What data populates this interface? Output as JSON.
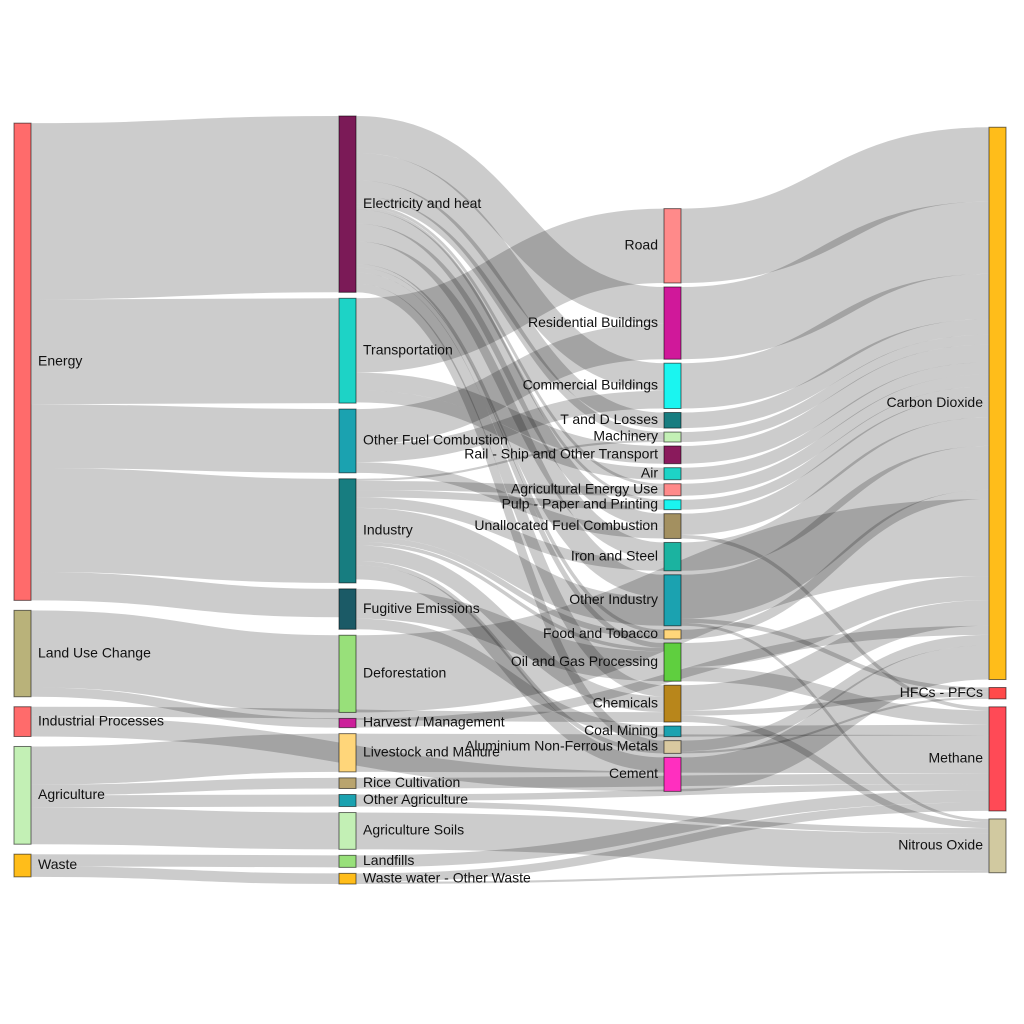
{
  "chart_data": {
    "type": "sankey",
    "nodes": [
      {
        "id": "energy",
        "label": "Energy",
        "color": "#ff6b6b",
        "col": 0
      },
      {
        "id": "luc",
        "label": "Land Use Change",
        "color": "#b9b27a",
        "col": 0
      },
      {
        "id": "ip",
        "label": "Industrial Processes",
        "color": "#ff6b6b",
        "col": 0
      },
      {
        "id": "ag",
        "label": "Agriculture",
        "color": "#c3f0b5",
        "col": 0
      },
      {
        "id": "waste",
        "label": "Waste",
        "color": "#ffbd1a",
        "col": 0
      },
      {
        "id": "elec",
        "label": "Electricity and heat",
        "color": "#7b1a57",
        "col": 1
      },
      {
        "id": "trans",
        "label": "Transportation",
        "color": "#1dd3c6",
        "col": 1
      },
      {
        "id": "ofc",
        "label": "Other Fuel Combustion",
        "color": "#1ba2b0",
        "col": 1
      },
      {
        "id": "ind",
        "label": "Industry",
        "color": "#177d80",
        "col": 1
      },
      {
        "id": "fug",
        "label": "Fugitive Emissions",
        "color": "#1b5a66",
        "col": 1
      },
      {
        "id": "def",
        "label": "Deforestation",
        "color": "#98e07a",
        "col": 1
      },
      {
        "id": "harv",
        "label": "Harvest / Management",
        "color": "#cc1f9a",
        "col": 1
      },
      {
        "id": "live",
        "label": "Livestock and Manure",
        "color": "#ffd67a",
        "col": 1
      },
      {
        "id": "rice",
        "label": "Rice Cultivation",
        "color": "#b9a46e",
        "col": 1
      },
      {
        "id": "oag",
        "label": "Other Agriculture",
        "color": "#1ba2b0",
        "col": 1
      },
      {
        "id": "soil",
        "label": "Agriculture Soils",
        "color": "#c3f0b5",
        "col": 1
      },
      {
        "id": "landf",
        "label": "Landfills",
        "color": "#98e07a",
        "col": 1
      },
      {
        "id": "ww",
        "label": "Waste water - Other Waste",
        "color": "#ffbd1a",
        "col": 1
      },
      {
        "id": "road",
        "label": "Road",
        "color": "#ff8a8a",
        "col": 2
      },
      {
        "id": "res",
        "label": "Residential Buildings",
        "color": "#d0189a",
        "col": 2
      },
      {
        "id": "com",
        "label": "Commercial Buildings",
        "color": "#1af5f0",
        "col": 2
      },
      {
        "id": "tdl",
        "label": "T and D Losses",
        "color": "#177d80",
        "col": 2
      },
      {
        "id": "mach",
        "label": "Machinery",
        "color": "#c3f0b5",
        "col": 2
      },
      {
        "id": "rail",
        "label": "Rail - Ship and Other Transport",
        "color": "#8a1a5c",
        "col": 2
      },
      {
        "id": "air",
        "label": "Air",
        "color": "#1dd3c6",
        "col": 2
      },
      {
        "id": "agen",
        "label": "Agricultural Energy Use",
        "color": "#ff8a8a",
        "col": 2
      },
      {
        "id": "pulp",
        "label": "Pulp - Paper and Printing",
        "color": "#1af5f0",
        "col": 2
      },
      {
        "id": "unal",
        "label": "Unallocated Fuel Combustion",
        "color": "#a39060",
        "col": 2
      },
      {
        "id": "iron",
        "label": "Iron and Steel",
        "color": "#1bb3a0",
        "col": 2
      },
      {
        "id": "oind",
        "label": "Other Industry",
        "color": "#1ba2b0",
        "col": 2
      },
      {
        "id": "food",
        "label": "Food and Tobacco",
        "color": "#ffd67a",
        "col": 2
      },
      {
        "id": "oil",
        "label": "Oil and Gas Processing",
        "color": "#5fcf3f",
        "col": 2
      },
      {
        "id": "chem",
        "label": "Chemicals",
        "color": "#b8861b",
        "col": 2
      },
      {
        "id": "coal",
        "label": "Coal Mining",
        "color": "#1ba2b0",
        "col": 2
      },
      {
        "id": "alu",
        "label": "Aluminium Non-Ferrous Metals",
        "color": "#d9c9a0",
        "col": 2
      },
      {
        "id": "cem",
        "label": "Cement",
        "color": "#ff2fbf",
        "col": 2
      },
      {
        "id": "co2",
        "label": "Carbon Dioxide",
        "color": "#ffbd1a",
        "col": 3
      },
      {
        "id": "hfc",
        "label": "HFCs - PFCs",
        "color": "#ff4a4a",
        "col": 3
      },
      {
        "id": "ch4",
        "label": "Methane",
        "color": "#ff4a56",
        "col": 3
      },
      {
        "id": "n2o",
        "label": "Nitrous Oxide",
        "color": "#d1c9a0",
        "col": 3
      }
    ],
    "links": [
      {
        "source": "energy",
        "target": "elec",
        "value": 24.9
      },
      {
        "source": "energy",
        "target": "trans",
        "value": 14.8
      },
      {
        "source": "energy",
        "target": "ofc",
        "value": 9.0
      },
      {
        "source": "energy",
        "target": "ind",
        "value": 14.7
      },
      {
        "source": "energy",
        "target": "fug",
        "value": 4.0
      },
      {
        "source": "luc",
        "target": "def",
        "value": 10.9
      },
      {
        "source": "luc",
        "target": "harv",
        "value": 1.3
      },
      {
        "source": "ip",
        "target": "cem",
        "value": 2.8
      },
      {
        "source": "ip",
        "target": "chem",
        "value": 1.4
      },
      {
        "source": "ag",
        "target": "live",
        "value": 5.4
      },
      {
        "source": "ag",
        "target": "rice",
        "value": 1.5
      },
      {
        "source": "ag",
        "target": "oag",
        "value": 1.7
      },
      {
        "source": "ag",
        "target": "soil",
        "value": 5.2
      },
      {
        "source": "waste",
        "target": "landf",
        "value": 1.7
      },
      {
        "source": "waste",
        "target": "ww",
        "value": 1.5
      },
      {
        "source": "elec",
        "target": "res",
        "value": 5.2
      },
      {
        "source": "elec",
        "target": "com",
        "value": 3.9
      },
      {
        "source": "elec",
        "target": "tdl",
        "value": 2.2
      },
      {
        "source": "elec",
        "target": "unal",
        "value": 2.0
      },
      {
        "source": "elec",
        "target": "iron",
        "value": 2.5
      },
      {
        "source": "elec",
        "target": "oind",
        "value": 3.2
      },
      {
        "source": "elec",
        "target": "chem",
        "value": 1.6
      },
      {
        "source": "elec",
        "target": "alu",
        "value": 1.2
      },
      {
        "source": "elec",
        "target": "mach",
        "value": 1.1
      },
      {
        "source": "elec",
        "target": "pulp",
        "value": 0.4
      },
      {
        "source": "elec",
        "target": "agen",
        "value": 0.4
      },
      {
        "source": "elec",
        "target": "food",
        "value": 0.5
      },
      {
        "source": "elec",
        "target": "oil",
        "value": 0.7
      },
      {
        "source": "trans",
        "target": "road",
        "value": 10.5
      },
      {
        "source": "trans",
        "target": "rail",
        "value": 2.5
      },
      {
        "source": "trans",
        "target": "air",
        "value": 1.7
      },
      {
        "source": "ofc",
        "target": "res",
        "value": 5.0
      },
      {
        "source": "ofc",
        "target": "com",
        "value": 2.5
      },
      {
        "source": "ofc",
        "target": "unal",
        "value": 1.5
      },
      {
        "source": "ind",
        "target": "iron",
        "value": 1.5
      },
      {
        "source": "ind",
        "target": "oind",
        "value": 4.0
      },
      {
        "source": "ind",
        "target": "chem",
        "value": 2.2
      },
      {
        "source": "ind",
        "target": "cem",
        "value": 2.0
      },
      {
        "source": "ind",
        "target": "alu",
        "value": 0.6
      },
      {
        "source": "ind",
        "target": "pulp",
        "value": 1.0
      },
      {
        "source": "ind",
        "target": "food",
        "value": 0.8
      },
      {
        "source": "ind",
        "target": "mach",
        "value": 0.3
      },
      {
        "source": "ind",
        "target": "agen",
        "value": 1.3
      },
      {
        "source": "ind",
        "target": "oil",
        "value": 0.5
      },
      {
        "source": "fug",
        "target": "oil",
        "value": 4.2
      },
      {
        "source": "fug",
        "target": "coal",
        "value": 1.5
      },
      {
        "source": "road",
        "target": "co2",
        "value": 10.5
      },
      {
        "source": "res",
        "target": "co2",
        "value": 10.2
      },
      {
        "source": "com",
        "target": "co2",
        "value": 6.4
      },
      {
        "source": "tdl",
        "target": "co2",
        "value": 2.2
      },
      {
        "source": "mach",
        "target": "co2",
        "value": 1.4
      },
      {
        "source": "rail",
        "target": "co2",
        "value": 2.5
      },
      {
        "source": "air",
        "target": "co2",
        "value": 1.7
      },
      {
        "source": "agen",
        "target": "co2",
        "value": 1.7
      },
      {
        "source": "pulp",
        "target": "co2",
        "value": 1.4
      },
      {
        "source": "unal",
        "target": "co2",
        "value": 3.0
      },
      {
        "source": "unal",
        "target": "ch4",
        "value": 0.5
      },
      {
        "source": "iron",
        "target": "co2",
        "value": 4.0
      },
      {
        "source": "oind",
        "target": "co2",
        "value": 6.2
      },
      {
        "source": "oind",
        "target": "hfc",
        "value": 0.6
      },
      {
        "source": "oind",
        "target": "n2o",
        "value": 0.4
      },
      {
        "source": "food",
        "target": "co2",
        "value": 1.3
      },
      {
        "source": "oil",
        "target": "co2",
        "value": 3.4
      },
      {
        "source": "oil",
        "target": "ch4",
        "value": 2.0
      },
      {
        "source": "chem",
        "target": "co2",
        "value": 3.6
      },
      {
        "source": "chem",
        "target": "hfc",
        "value": 0.7
      },
      {
        "source": "chem",
        "target": "n2o",
        "value": 0.9
      },
      {
        "source": "coal",
        "target": "ch4",
        "value": 1.5
      },
      {
        "source": "alu",
        "target": "co2",
        "value": 1.5
      },
      {
        "source": "alu",
        "target": "hfc",
        "value": 0.3
      },
      {
        "source": "cem",
        "target": "co2",
        "value": 4.8
      },
      {
        "source": "def",
        "target": "co2",
        "value": 10.9
      },
      {
        "source": "harv",
        "target": "co2",
        "value": 1.3
      },
      {
        "source": "live",
        "target": "ch4",
        "value": 5.4
      },
      {
        "source": "rice",
        "target": "ch4",
        "value": 1.5
      },
      {
        "source": "oag",
        "target": "ch4",
        "value": 0.9
      },
      {
        "source": "oag",
        "target": "n2o",
        "value": 0.8
      },
      {
        "source": "soil",
        "target": "n2o",
        "value": 5.2
      },
      {
        "source": "landf",
        "target": "ch4",
        "value": 1.7
      },
      {
        "source": "ww",
        "target": "ch4",
        "value": 1.2
      },
      {
        "source": "ww",
        "target": "n2o",
        "value": 0.3
      }
    ]
  }
}
